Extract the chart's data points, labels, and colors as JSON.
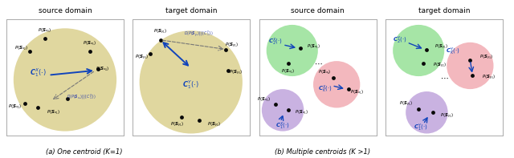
{
  "fig_width": 6.4,
  "fig_height": 1.97,
  "bg_color": "#ffffff",
  "panel_titles": [
    "source domain",
    "target domain",
    "source domain",
    "target domain"
  ],
  "caption_a": "(a) One centroid (K=1)",
  "caption_b": "(b) Multiple centroids (K >1)",
  "olive_color": "#d9cd87",
  "green_color": "#88dd88",
  "pink_color": "#f0a0a8",
  "purple_color": "#b898d8",
  "dot_color": "#0a0a0a",
  "arrow_color": "#1144bb",
  "dashed_color": "#777777"
}
